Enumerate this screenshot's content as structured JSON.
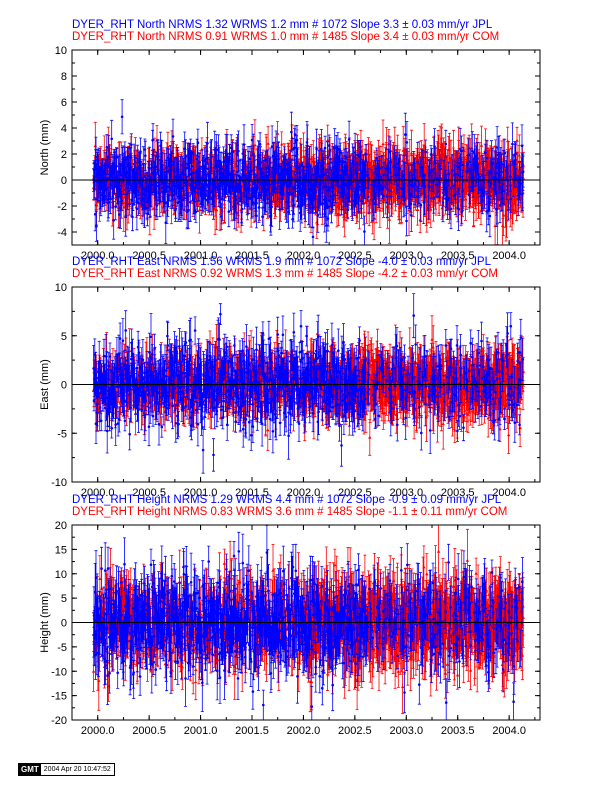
{
  "colors": {
    "jpl": "#0000ff",
    "com": "#ff0000",
    "axis": "#000000"
  },
  "chart_data": [
    {
      "type": "scatter",
      "component": "North",
      "ylabel": "North (mm)",
      "xlim": [
        1999.75,
        2004.3
      ],
      "ylim": [
        -5,
        10
      ],
      "yticks": [
        -4,
        -2,
        0,
        2,
        4,
        6,
        8,
        10
      ],
      "xticks": [
        2000.0,
        2000.5,
        2001.0,
        2001.5,
        2002.0,
        2002.5,
        2003.0,
        2003.5,
        2004.0
      ],
      "xtick_labels": [
        "2000.0",
        "2000.5",
        "2001.0",
        "2001.5",
        "2002.0",
        "2002.5",
        "2003.0",
        "2003.5",
        "2004.0"
      ],
      "zero_line": true,
      "error_bars": true,
      "series": [
        {
          "name": "JPL",
          "color": "#0000ff",
          "title": "DYER_RHT North NRMS 1.32 WRMS  1.2 mm # 1072 Slope    3.3 ±  0.03 mm/yr JPL",
          "nrms": 1.32,
          "wrms_mm": 1.2,
          "n": 1072,
          "slope_mm_yr": 3.3,
          "slope_sigma": 0.03,
          "start": 1999.96,
          "end": 2004.14,
          "scatter_mm": 1.2,
          "error_mm": 1.1,
          "step": 0.0039,
          "seed": 11
        },
        {
          "name": "COM",
          "color": "#ff0000",
          "title": "DYER_RHT North NRMS 0.91 WRMS  1.0 mm # 1485 Slope    3.4 ±  0.03 mm/yr COM",
          "nrms": 0.91,
          "wrms_mm": 1.0,
          "n": 1485,
          "slope_mm_yr": 3.4,
          "slope_sigma": 0.03,
          "start": 1999.96,
          "end": 2004.14,
          "scatter_mm": 1.0,
          "error_mm": 1.3,
          "step": 0.0028,
          "seed": 23
        }
      ]
    },
    {
      "type": "scatter",
      "component": "East",
      "ylabel": "East (mm)",
      "xlim": [
        1999.75,
        2004.3
      ],
      "ylim": [
        -10,
        10
      ],
      "yticks": [
        -10,
        -5,
        0,
        5,
        10
      ],
      "xticks": [
        2000.0,
        2000.5,
        2001.0,
        2001.5,
        2002.0,
        2002.5,
        2003.0,
        2003.5,
        2004.0
      ],
      "xtick_labels": [
        "2000.0",
        "2000.5",
        "2001.0",
        "2001.5",
        "2002.0",
        "2002.5",
        "2003.0",
        "2003.5",
        "2004.0"
      ],
      "zero_line": true,
      "error_bars": true,
      "series": [
        {
          "name": "JPL",
          "color": "#0000ff",
          "title": "DYER_RHT East NRMS 1.56 WRMS  1.9 mm # 1072 Slope   -4.0 ±  0.03 mm/yr JPL",
          "nrms": 1.56,
          "wrms_mm": 1.9,
          "n": 1072,
          "slope_mm_yr": -4.0,
          "slope_sigma": 0.03,
          "start": 1999.96,
          "end": 2004.14,
          "scatter_mm": 1.9,
          "error_mm": 1.6,
          "step": 0.0039,
          "seed": 37
        },
        {
          "name": "COM",
          "color": "#ff0000",
          "title": "DYER_RHT East NRMS 0.92 WRMS  1.3 mm # 1485 Slope   -4.2 ±  0.03 mm/yr COM",
          "nrms": 0.92,
          "wrms_mm": 1.3,
          "n": 1485,
          "slope_mm_yr": -4.2,
          "slope_sigma": 0.03,
          "start": 1999.96,
          "end": 2004.14,
          "scatter_mm": 1.3,
          "error_mm": 1.8,
          "step": 0.0028,
          "seed": 41
        }
      ]
    },
    {
      "type": "scatter",
      "component": "Height",
      "ylabel": "Height (mm)",
      "xlim": [
        1999.75,
        2004.3
      ],
      "ylim": [
        -20,
        20
      ],
      "yticks": [
        -20,
        -15,
        -10,
        -5,
        0,
        5,
        10,
        15,
        20
      ],
      "xticks": [
        2000.0,
        2000.5,
        2001.0,
        2001.5,
        2002.0,
        2002.5,
        2003.0,
        2003.5,
        2004.0
      ],
      "xtick_labels": [
        "2000.0",
        "2000.5",
        "2001.0",
        "2001.5",
        "2002.0",
        "2002.5",
        "2003.0",
        "2003.5",
        "2004.0"
      ],
      "zero_line": true,
      "error_bars": true,
      "series": [
        {
          "name": "JPL",
          "color": "#0000ff",
          "title": "DYER_RHT Height NRMS 1.29 WRMS  4.4 mm # 1072 Slope   -0.9 ±  0.09 mm/yr JPL",
          "nrms": 1.29,
          "wrms_mm": 4.4,
          "n": 1072,
          "slope_mm_yr": -0.9,
          "slope_sigma": 0.09,
          "start": 1999.96,
          "end": 2004.14,
          "scatter_mm": 4.4,
          "error_mm": 4.0,
          "step": 0.0039,
          "seed": 53
        },
        {
          "name": "COM",
          "color": "#ff0000",
          "title": "DYER_RHT Height NRMS 0.83 WRMS  3.6 mm # 1485 Slope   -1.1 ±  0.11 mm/yr COM",
          "nrms": 0.83,
          "wrms_mm": 3.6,
          "n": 1485,
          "slope_mm_yr": -1.1,
          "slope_sigma": 0.11,
          "start": 1999.96,
          "end": 2004.14,
          "scatter_mm": 3.6,
          "error_mm": 4.6,
          "step": 0.0028,
          "seed": 67
        }
      ]
    }
  ],
  "footer": {
    "logo_text": "GMT",
    "timestamp": "2004 Apr 20 10:47:52"
  }
}
